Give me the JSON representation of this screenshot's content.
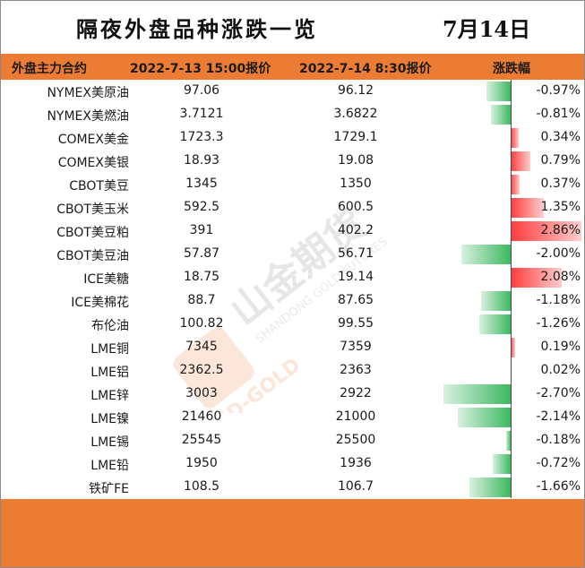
{
  "title": "隔夜外盘品种涨跌一览",
  "date": "7月14日",
  "header": {
    "col_name": "外盘主力合约",
    "col_a": "2022-7-13 15:00报价",
    "col_b": "2022-7-14 8:30报价",
    "col_pct": "涨跌幅"
  },
  "watermark": {
    "cn": "山金期货",
    "en": "SHANDONG GOLD FUTURES",
    "sd": "SD-GOLD"
  },
  "colors": {
    "accent": "#ec7c33",
    "up": "#ff3b3b",
    "down": "#3cb860"
  },
  "chart_data": {
    "type": "table",
    "columns": [
      "外盘主力合约",
      "2022-7-13 15:00报价",
      "2022-7-14 8:30报价",
      "涨跌幅"
    ],
    "rows": [
      {
        "name": "NYMEX美原油",
        "a": "97.06",
        "b": "96.12",
        "pct": "-0.97%",
        "value": -0.97
      },
      {
        "name": "NYMEX美燃油",
        "a": "3.7121",
        "b": "3.6822",
        "pct": "-0.81%",
        "value": -0.81
      },
      {
        "name": "COMEX美金",
        "a": "1723.3",
        "b": "1729.1",
        "pct": "0.34%",
        "value": 0.34
      },
      {
        "name": "COMEX美银",
        "a": "18.93",
        "b": "19.08",
        "pct": "0.79%",
        "value": 0.79
      },
      {
        "name": "CBOT美豆",
        "a": "1345",
        "b": "1350",
        "pct": "0.37%",
        "value": 0.37
      },
      {
        "name": "CBOT美玉米",
        "a": "592.5",
        "b": "600.5",
        "pct": "1.35%",
        "value": 1.35
      },
      {
        "name": "CBOT美豆粕",
        "a": "391",
        "b": "402.2",
        "pct": "2.86%",
        "value": 2.86
      },
      {
        "name": "CBOT美豆油",
        "a": "57.87",
        "b": "56.71",
        "pct": "-2.00%",
        "value": -2.0
      },
      {
        "name": "ICE美糖",
        "a": "18.75",
        "b": "19.14",
        "pct": "2.08%",
        "value": 2.08
      },
      {
        "name": "ICE美棉花",
        "a": "88.7",
        "b": "87.65",
        "pct": "-1.18%",
        "value": -1.18
      },
      {
        "name": "布伦油",
        "a": "100.82",
        "b": "99.55",
        "pct": "-1.26%",
        "value": -1.26
      },
      {
        "name": "LME铜",
        "a": "7345",
        "b": "7359",
        "pct": "0.19%",
        "value": 0.19
      },
      {
        "name": "LME铝",
        "a": "2362.5",
        "b": "2363",
        "pct": "0.02%",
        "value": 0.02
      },
      {
        "name": "LME锌",
        "a": "3003",
        "b": "2922",
        "pct": "-2.70%",
        "value": -2.7
      },
      {
        "name": "LME镍",
        "a": "21460",
        "b": "21000",
        "pct": "-2.14%",
        "value": -2.14
      },
      {
        "name": "LME锡",
        "a": "25545",
        "b": "25500",
        "pct": "-0.18%",
        "value": -0.18
      },
      {
        "name": "LME铅",
        "a": "1950",
        "b": "1936",
        "pct": "-0.72%",
        "value": -0.72
      },
      {
        "name": "铁矿FE",
        "a": "108.5",
        "b": "106.7",
        "pct": "-1.66%",
        "value": -1.66
      }
    ]
  }
}
